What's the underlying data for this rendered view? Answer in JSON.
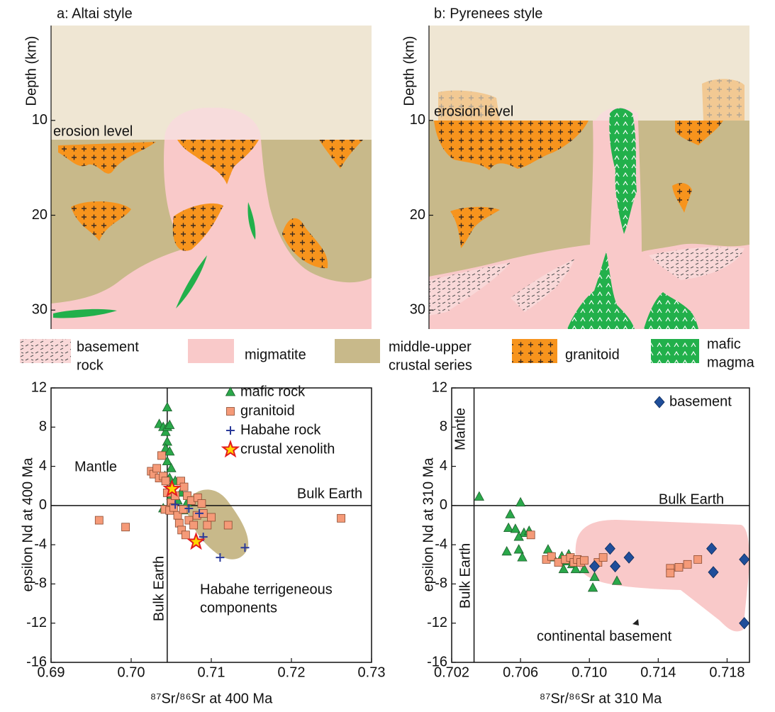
{
  "chart_data": [
    {
      "type": "cross-section",
      "title": "a: Altai style",
      "ylabel": "Depth (km)",
      "ylim": [
        0,
        32
      ],
      "yticks": [
        10,
        20,
        30
      ],
      "annotation": "erosion level"
    },
    {
      "type": "cross-section",
      "title": "b: Pyrenees style",
      "ylabel": "Depth (km)",
      "ylim": [
        0,
        32
      ],
      "yticks": [
        10,
        20,
        30
      ],
      "annotation": "erosion level"
    },
    {
      "type": "scatter",
      "xlabel": "⁸⁷Sr/⁸⁶Sr at 400 Ma",
      "ylabel": "epsilon Nd at 400 Ma",
      "xlim": [
        0.69,
        0.73
      ],
      "xticks": [
        0.69,
        {
          "value": 0.7,
          "label": "0.70"
        },
        0.71,
        0.72,
        0.73
      ],
      "ylim": [
        -16,
        12
      ],
      "yticks": [
        -16,
        -12,
        -8,
        -4,
        0,
        4,
        8,
        12
      ],
      "vline": {
        "x": 0.7045,
        "label": "Bulk Earth"
      },
      "hline": {
        "y": 0,
        "label": "Bulk Earth"
      },
      "region_label": "Mantle",
      "annotation": [
        "Habahe terrigeneous",
        "components"
      ],
      "series": [
        {
          "name": "mafic rock",
          "marker": "triangle",
          "color": "#2aa84a",
          "x": [
            0.7035,
            0.704,
            0.7043,
            0.7045,
            0.7045,
            0.7048,
            0.7045,
            0.7043,
            0.7048,
            0.7045,
            0.705,
            0.7042,
            0.7048,
            0.705,
            0.7055,
            0.705,
            0.7058,
            0.7062,
            0.707,
            0.7065,
            0.704
          ],
          "values": [
            8.3,
            8.0,
            7.5,
            10.0,
            8.0,
            8.2,
            6.5,
            5.8,
            5.5,
            4.5,
            3.8,
            3.0,
            2.8,
            2.0,
            2.5,
            1.0,
            0.5,
            1.3,
            0.3,
            -0.5,
            -0.3
          ]
        },
        {
          "name": "granitoid",
          "marker": "square",
          "color": "#f59a78",
          "x": [
            0.696,
            0.6993,
            0.7262,
            0.7025,
            0.7028,
            0.7032,
            0.7035,
            0.7038,
            0.704,
            0.7043,
            0.7045,
            0.705,
            0.7055,
            0.7062,
            0.7066,
            0.707,
            0.7075,
            0.7083,
            0.7088,
            0.7042,
            0.7048,
            0.7058,
            0.706,
            0.7063,
            0.7068,
            0.7072,
            0.7078,
            0.7082,
            0.709,
            0.7095,
            0.71,
            0.7121,
            0.7053,
            0.7065
          ],
          "values": [
            -1.5,
            -2.2,
            -1.3,
            3.5,
            3.2,
            3.8,
            2.8,
            5.1,
            3.0,
            2.5,
            1.3,
            0.3,
            1.0,
            2.5,
            1.9,
            1.0,
            0.5,
            0.8,
            0.2,
            -0.4,
            -0.5,
            -1.0,
            -1.8,
            -2.5,
            -3.0,
            -1.5,
            -2.0,
            -1.0,
            -0.8,
            -2.0,
            -1.2,
            -2.0,
            -0.2,
            -0.4
          ]
        },
        {
          "name": "Habahe rock",
          "marker": "plus",
          "color": "#2a3a9a",
          "x": [
            0.7055,
            0.7072,
            0.7085,
            0.709,
            0.7111,
            0.7142
          ],
          "values": [
            0.1,
            -0.3,
            -0.8,
            -3.2,
            -5.3,
            -4.3
          ]
        },
        {
          "name": "crustal xenolith",
          "marker": "star",
          "color": "#e41a1c",
          "x": [
            0.7051,
            0.7081
          ],
          "values": [
            1.7,
            -3.7
          ]
        }
      ]
    },
    {
      "type": "scatter",
      "xlabel": "⁸⁷Sr/⁸⁶Sr at 310 Ma",
      "ylabel": "epsilon Nd at 310 Ma",
      "xlim": [
        0.702,
        0.7193
      ],
      "xticks": [
        0.702,
        0.706,
        {
          "value": 0.71,
          "label": "0.710"
        },
        0.714,
        0.718
      ],
      "ylim": [
        -16,
        12
      ],
      "yticks": [
        -16,
        -12,
        -8,
        -4,
        0,
        4,
        8,
        12
      ],
      "vline": {
        "x": 0.7033,
        "label": "Bulk Earth"
      },
      "hline": {
        "y": 0,
        "label": "Bulk Earth"
      },
      "region_label": "Mantle",
      "annotation": [
        "continental basement"
      ],
      "series": [
        {
          "marker": "triangle",
          "color": "#2aa84a",
          "x": [
            0.7036,
            0.7054,
            0.7053,
            0.7057,
            0.706,
            0.7062,
            0.7065,
            0.7059,
            0.7052,
            0.7059,
            0.7061,
            0.7076,
            0.7079,
            0.7084,
            0.7088,
            0.709,
            0.7085,
            0.7092,
            0.7097,
            0.7103,
            0.7102,
            0.7116,
            0.7087
          ],
          "values": [
            0.9,
            -0.9,
            -2.3,
            -2.4,
            0.3,
            -2.8,
            -2.6,
            -3.2,
            -4.7,
            -4.5,
            -5.3,
            -4.5,
            -5.3,
            -5.2,
            -5.0,
            -6.0,
            -6.5,
            -6.5,
            -6.5,
            -7.3,
            -8.4,
            -7.7,
            -5.7
          ]
        },
        {
          "marker": "square",
          "color": "#f59a78",
          "x": [
            0.7066,
            0.7075,
            0.7078,
            0.7082,
            0.7086,
            0.7089,
            0.7091,
            0.7093,
            0.7095,
            0.7097,
            0.7105,
            0.7108,
            0.7147,
            0.7147,
            0.7152,
            0.7157,
            0.7163
          ],
          "values": [
            -3.0,
            -5.5,
            -5.2,
            -5.8,
            -5.5,
            -5.3,
            -5.8,
            -5.5,
            -5.8,
            -5.6,
            -5.8,
            -5.3,
            -6.4,
            -6.9,
            -6.3,
            -6.0,
            -5.5
          ]
        },
        {
          "name": "basement",
          "marker": "diamond",
          "color": "#1f4e9a",
          "x": [
            0.7103,
            0.7112,
            0.7115,
            0.7123,
            0.7171,
            0.7172,
            0.719,
            0.719
          ],
          "values": [
            -6.2,
            -4.4,
            -6.2,
            -5.3,
            -4.4,
            -6.8,
            -5.5,
            -12.0
          ]
        }
      ]
    }
  ],
  "lithology_legend": [
    [
      "basement",
      "rock"
    ],
    [
      "migmatite"
    ],
    [
      "middle-upper",
      "crustal series"
    ],
    [
      "granitoid"
    ],
    [
      "mafic",
      "magma"
    ]
  ]
}
